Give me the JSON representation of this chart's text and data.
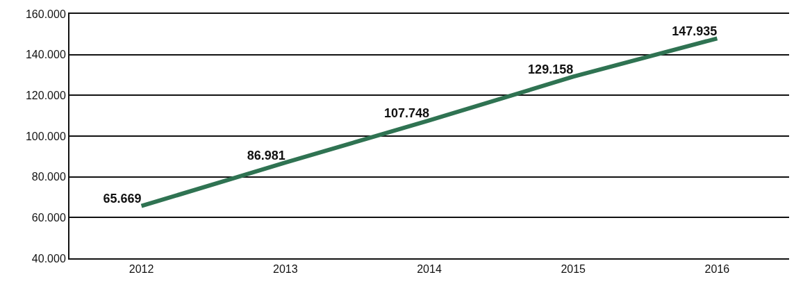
{
  "chart_data": {
    "type": "line",
    "categories": [
      "2012",
      "2013",
      "2014",
      "2015",
      "2016"
    ],
    "series": [
      {
        "color": "#2f7352",
        "values": [
          65669,
          86981,
          107748,
          129158,
          147935
        ],
        "value_labels": [
          "65.669",
          "86.981",
          "107.748",
          "129.158",
          "147.935"
        ]
      }
    ],
    "ylim": [
      40000,
      160000
    ],
    "yticks": [
      {
        "value": 40000,
        "label": "40.000"
      },
      {
        "value": 60000,
        "label": "60.000"
      },
      {
        "value": 80000,
        "label": "80.000"
      },
      {
        "value": 100000,
        "label": "100.000"
      },
      {
        "value": 120000,
        "label": "120.000"
      },
      {
        "value": 140000,
        "label": "140.000"
      },
      {
        "value": 160000,
        "label": "160.000"
      }
    ],
    "grid": "y",
    "marker": "none",
    "line_style": "solid"
  }
}
